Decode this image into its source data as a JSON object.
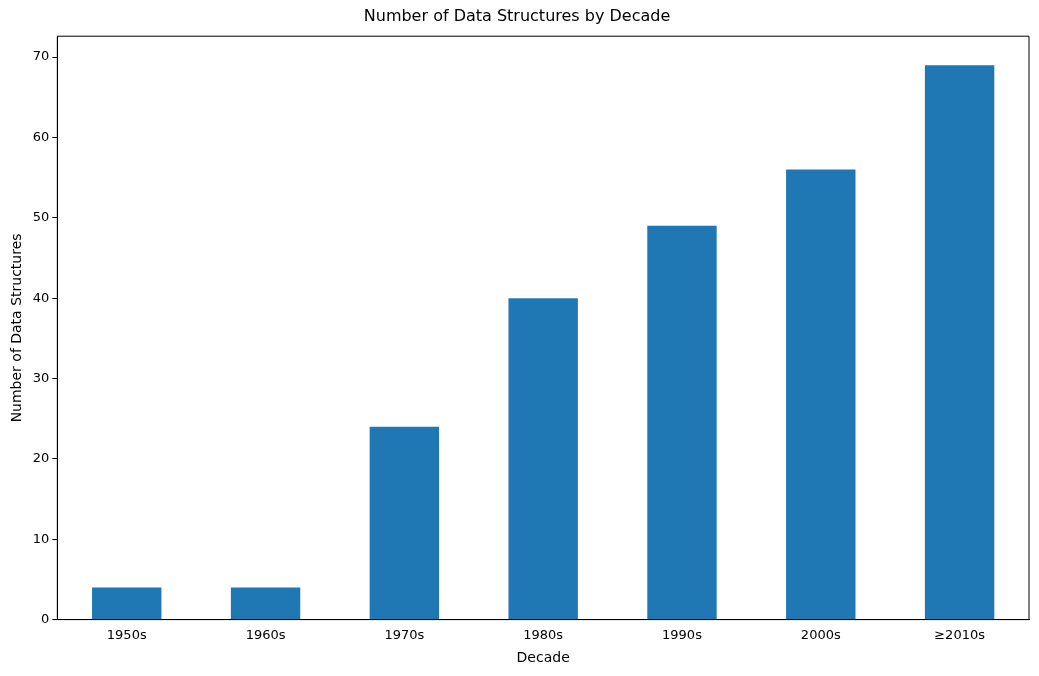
{
  "chart_data": {
    "type": "bar",
    "title": "Number of Data Structures by Decade",
    "xlabel": "Decade",
    "ylabel": "Number of Data Structures",
    "categories": [
      "1950s",
      "1960s",
      "1970s",
      "1980s",
      "1990s",
      "2000s",
      "≥2010s"
    ],
    "values": [
      4,
      4,
      24,
      40,
      49,
      56,
      69
    ],
    "color": "#1f77b4",
    "ylim": [
      0,
      72.6
    ],
    "yticks": [
      0,
      10,
      20,
      30,
      40,
      50,
      60,
      70
    ],
    "grid": false,
    "legend": false
  }
}
